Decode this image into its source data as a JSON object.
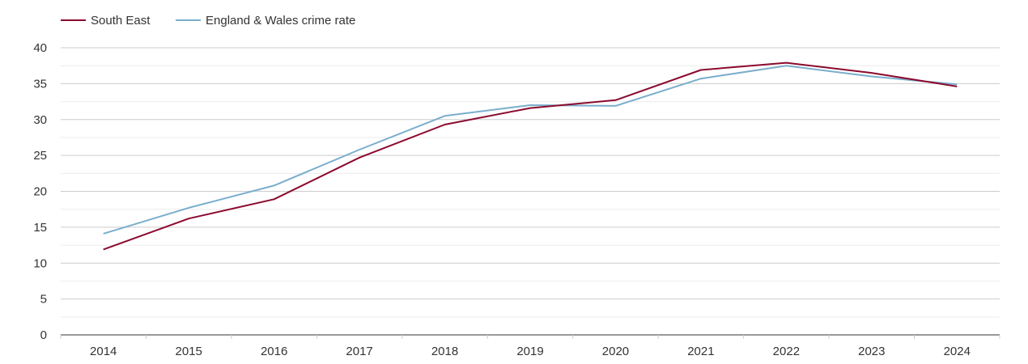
{
  "chart_data": {
    "type": "line",
    "title": "",
    "xlabel": "",
    "ylabel": "",
    "ylim": [
      0,
      40
    ],
    "yticks": [
      0,
      5,
      10,
      15,
      20,
      25,
      30,
      35,
      40
    ],
    "grid": true,
    "legend_position": "top-left",
    "x": [
      "2014",
      "2015",
      "2016",
      "2017",
      "2018",
      "2019",
      "2020",
      "2021",
      "2022",
      "2023",
      "2024"
    ],
    "series": [
      {
        "name": "South East",
        "color": "#8b0a2e",
        "values": [
          11.9,
          16.2,
          18.9,
          24.7,
          29.3,
          31.6,
          32.7,
          36.9,
          37.9,
          36.5,
          34.6
        ]
      },
      {
        "name": "England & Wales crime rate",
        "color": "#7aaecc",
        "values": [
          14.1,
          17.7,
          20.8,
          25.8,
          30.5,
          32.0,
          31.9,
          35.7,
          37.5,
          36.0,
          34.9
        ]
      }
    ]
  }
}
